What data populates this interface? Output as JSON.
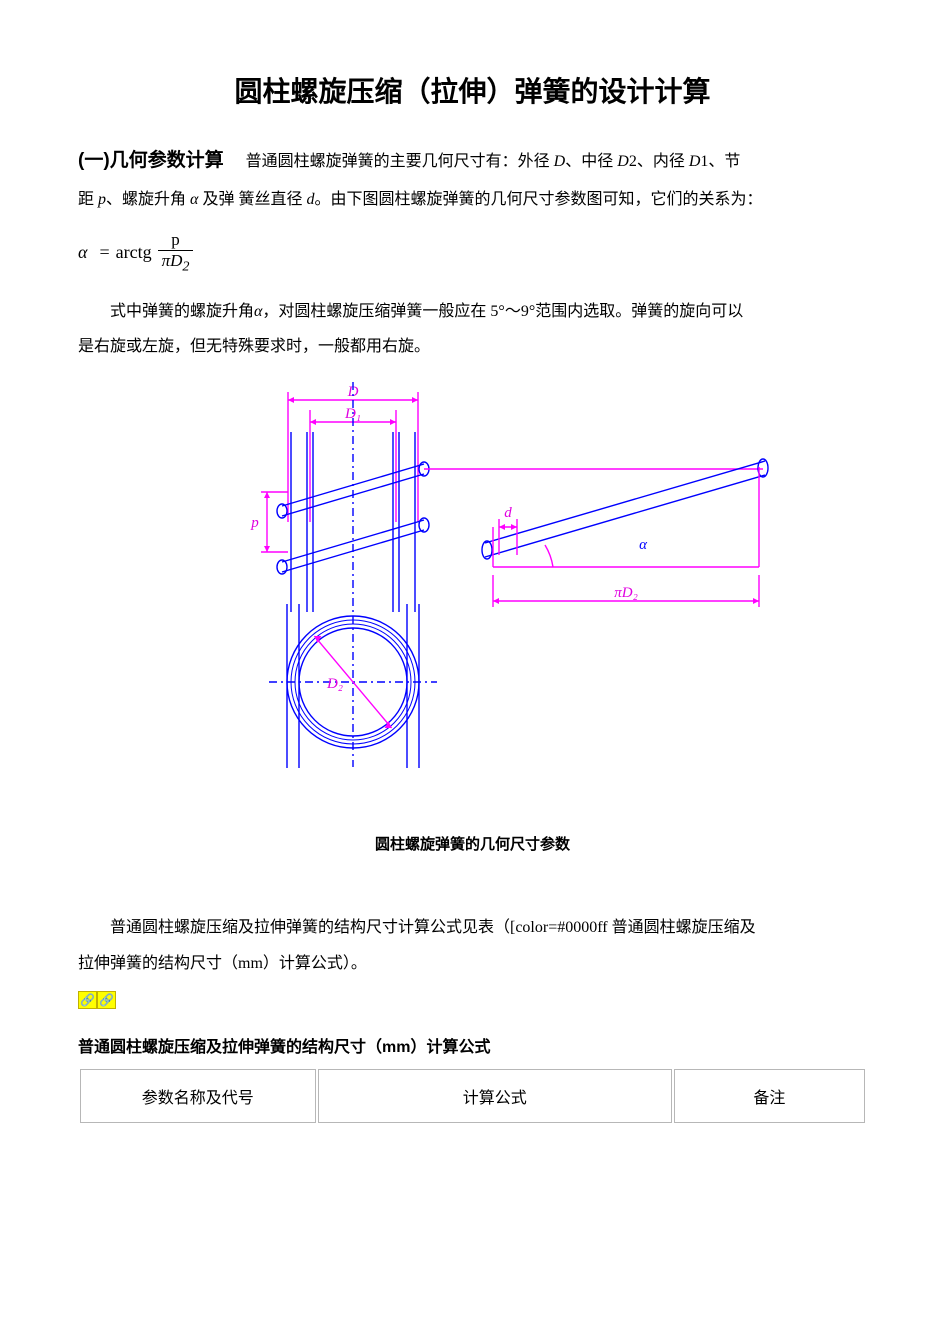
{
  "title": "圆柱螺旋压缩（拉伸）弹簧的设计计算",
  "section1": {
    "label": "(一)几何参数计算",
    "intro_a": "普通圆柱螺旋弹簧的主要几何尺寸有：外径 ",
    "sym_D": "D",
    "intro_b": "、中径 ",
    "sym_D2": "D",
    "sub2": "2",
    "intro_c": "、内径 ",
    "sym_D1": "D",
    "sub1": "1",
    "intro_d": "、节",
    "intro_line2a": "距 ",
    "sym_p": "p",
    "intro_line2b": "、螺旋升角 ",
    "sym_alpha": "α",
    "intro_line2c": " 及弹 簧丝直径 ",
    "sym_d": "d",
    "intro_line2d": "。由下图圆柱螺旋弹簧的几何尺寸参数图可知，它们的关系为："
  },
  "formula": {
    "lhs": "α",
    "eq": "=",
    "op": "arctg",
    "num": "p",
    "den_pi": "π",
    "den_D": "D",
    "den_sub": "2"
  },
  "para2_a": "式中弹簧的螺旋升角 ",
  "para2_alpha": "α",
  "para2_b": "，对圆柱螺旋压缩弹簧一般应在 5°～9°范围内选取。弹簧的旋向可以",
  "para2_line2": "是右旋或左旋，但无特殊要求时，一般都用右旋。",
  "diagram": {
    "caption": "圆柱螺旋弹簧的几何尺寸参数",
    "labels": {
      "D": "D",
      "D1": "D₁",
      "D2": "D₂",
      "p": "p",
      "d": "d",
      "alpha": "α",
      "piD2": "πD₂"
    },
    "colors": {
      "magenta": "#ff00ff",
      "blue": "#0000ff",
      "dim_text": "#e000e0"
    },
    "line_width": 1.4
  },
  "para3_a": "普通圆柱螺旋压缩及拉伸弹簧的结构尺寸计算公式见表（[color=#0000ff 普通圆柱螺旋压缩及",
  "para3_b": "拉伸弹簧的结构尺寸（mm）计算公式）。",
  "anchors": {
    "icon1": "🔗",
    "icon2": "🔗"
  },
  "table": {
    "title": "普通圆柱螺旋压缩及拉伸弹簧的结构尺寸（mm）计算公式",
    "headers": {
      "c1": "参数名称及代号",
      "c2": "计算公式",
      "c3": "备注"
    }
  }
}
